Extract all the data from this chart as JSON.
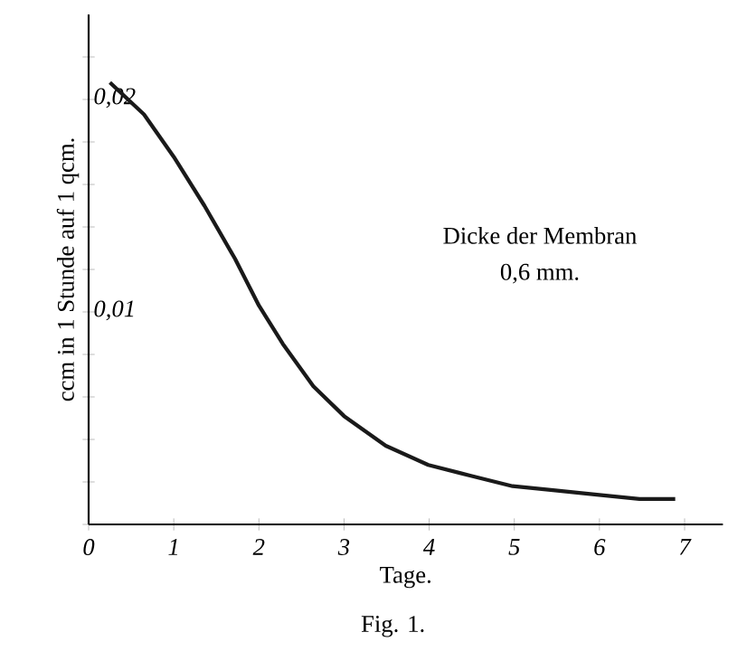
{
  "chart_data": {
    "type": "line",
    "xlabel": "Tage.",
    "ylabel": "ccm in 1 Stunde auf 1 qcm.",
    "annotations": [
      "Dicke der Membran",
      "0,6 mm.",
      "Fig. 1."
    ],
    "x": [
      0.25,
      0.65,
      1.0,
      1.36,
      1.72,
      2.0,
      2.28,
      2.64,
      3.0,
      3.49,
      3.99,
      4.48,
      4.98,
      5.48,
      5.97,
      6.47,
      6.89
    ],
    "series": [
      {
        "color": "#1a1a1a",
        "values": [
          0.0208,
          0.0193,
          0.0173,
          0.015,
          0.0125,
          0.0103,
          0.0085,
          0.0065,
          0.0051,
          0.0037,
          0.0028,
          0.0023,
          0.0018,
          0.0016,
          0.0014,
          0.0012,
          0.0012
        ]
      }
    ],
    "xlim": [
      0,
      7.45
    ],
    "ylim": [
      0,
      0.024
    ],
    "xticks": [
      0,
      1,
      2,
      3,
      4,
      5,
      6,
      7
    ],
    "yticks": [
      {
        "value": 0,
        "label": null
      },
      {
        "value": 0.002,
        "label": null
      },
      {
        "value": 0.004,
        "label": null
      },
      {
        "value": 0.006,
        "label": null
      },
      {
        "value": 0.008,
        "label": null
      },
      {
        "value": 0.01,
        "label": "0,01"
      },
      {
        "value": 0.012,
        "label": null
      },
      {
        "value": 0.014,
        "label": null
      },
      {
        "value": 0.016,
        "label": null
      },
      {
        "value": 0.018,
        "label": null
      },
      {
        "value": 0.02,
        "label": "0,02"
      },
      {
        "value": 0.022,
        "label": null
      }
    ]
  }
}
